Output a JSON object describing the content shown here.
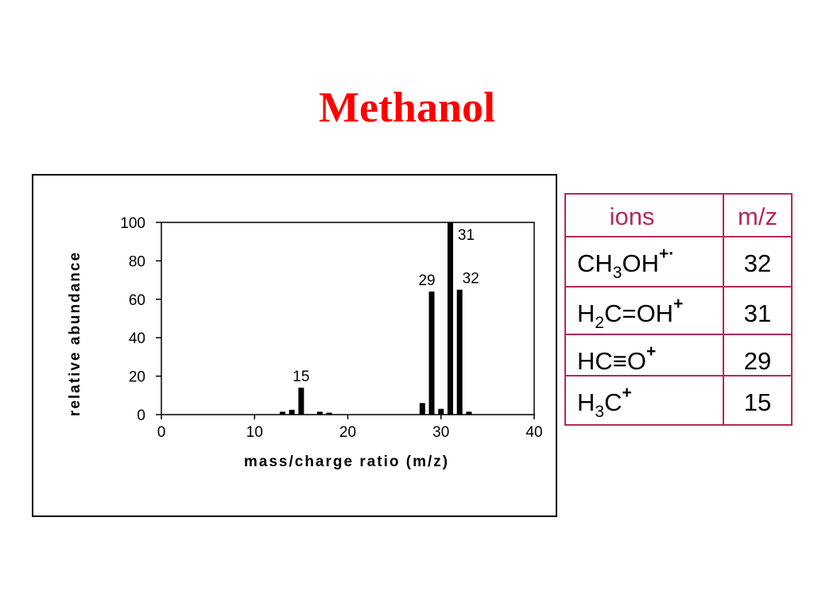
{
  "title": "Methanol",
  "chart_data": {
    "type": "bar",
    "x": [
      13,
      14,
      15,
      17,
      18,
      28,
      29,
      30,
      31,
      32,
      33
    ],
    "values": [
      1.5,
      2.5,
      14,
      1.5,
      1,
      6,
      64,
      3,
      100,
      65,
      1.5
    ],
    "color": "#000000",
    "xlim": [
      0,
      40
    ],
    "xticks": [
      0,
      10,
      20,
      30,
      40
    ],
    "ylim": [
      0,
      100
    ],
    "yticks": [
      0,
      20,
      40,
      60,
      80,
      100
    ],
    "xlabel": "mass/charge ratio (m/z)",
    "ylabel": "relative abundance",
    "annotations": [
      {
        "text": "15",
        "x": 15
      },
      {
        "text": "29",
        "x": 29
      },
      {
        "text": "31",
        "x": 31
      },
      {
        "text": "32",
        "x": 32
      }
    ]
  },
  "table": {
    "header": [
      "ions",
      "m/z"
    ],
    "rows": [
      [
        [
          "CH",
          {
            "sub": "3"
          },
          "OH",
          {
            "sup": "+·"
          }
        ],
        32
      ],
      [
        [
          "H",
          {
            "sub": "2"
          },
          "C=OH",
          {
            "sup": "+"
          }
        ],
        31
      ],
      [
        [
          "HC≡O",
          {
            "sup": "+"
          }
        ],
        29
      ],
      [
        [
          "H",
          {
            "sub": "3"
          },
          "C",
          {
            "sup": "+"
          }
        ],
        15
      ]
    ]
  }
}
